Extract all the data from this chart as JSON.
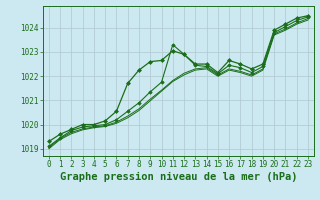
{
  "background_color": "#cce8f0",
  "plot_bg_color": "#cce8f0",
  "grid_color": "#b0c8d0",
  "line_color": "#1a6e1a",
  "title": "Graphe pression niveau de la mer (hPa)",
  "xlim": [
    -0.5,
    23.5
  ],
  "ylim": [
    1018.7,
    1024.9
  ],
  "yticks": [
    1019,
    1020,
    1021,
    1022,
    1023,
    1024
  ],
  "xticks": [
    0,
    1,
    2,
    3,
    4,
    5,
    6,
    7,
    8,
    9,
    10,
    11,
    12,
    13,
    14,
    15,
    16,
    17,
    18,
    19,
    20,
    21,
    22,
    23
  ],
  "series": [
    [
      1019.3,
      1019.6,
      1019.8,
      1020.0,
      1020.0,
      1020.15,
      1020.55,
      1021.7,
      1022.25,
      1022.6,
      1022.65,
      1023.05,
      1022.9,
      1022.5,
      1022.5,
      1022.15,
      1022.65,
      1022.5,
      1022.3,
      1022.5,
      1023.9,
      1024.15,
      1024.4,
      1024.5
    ],
    [
      1019.1,
      1019.45,
      1019.75,
      1019.9,
      1019.95,
      1020.0,
      1020.2,
      1020.55,
      1020.9,
      1021.35,
      1021.75,
      1023.3,
      1022.9,
      1022.45,
      1022.4,
      1022.1,
      1022.45,
      1022.35,
      1022.15,
      1022.4,
      1023.8,
      1024.05,
      1024.3,
      1024.45
    ],
    [
      1019.05,
      1019.42,
      1019.68,
      1019.82,
      1019.9,
      1019.95,
      1020.1,
      1020.35,
      1020.65,
      1021.05,
      1021.42,
      1021.82,
      1022.12,
      1022.3,
      1022.35,
      1022.05,
      1022.3,
      1022.2,
      1022.05,
      1022.3,
      1023.75,
      1023.95,
      1024.2,
      1024.38
    ],
    [
      1019.0,
      1019.38,
      1019.62,
      1019.78,
      1019.87,
      1019.92,
      1020.05,
      1020.28,
      1020.58,
      1020.98,
      1021.38,
      1021.78,
      1022.05,
      1022.25,
      1022.3,
      1022.0,
      1022.25,
      1022.15,
      1022.0,
      1022.25,
      1023.7,
      1023.9,
      1024.15,
      1024.32
    ]
  ],
  "title_fontsize": 7.5,
  "tick_fontsize": 5.5,
  "title_color": "#1a6e1a",
  "tick_color": "#1a6e1a"
}
